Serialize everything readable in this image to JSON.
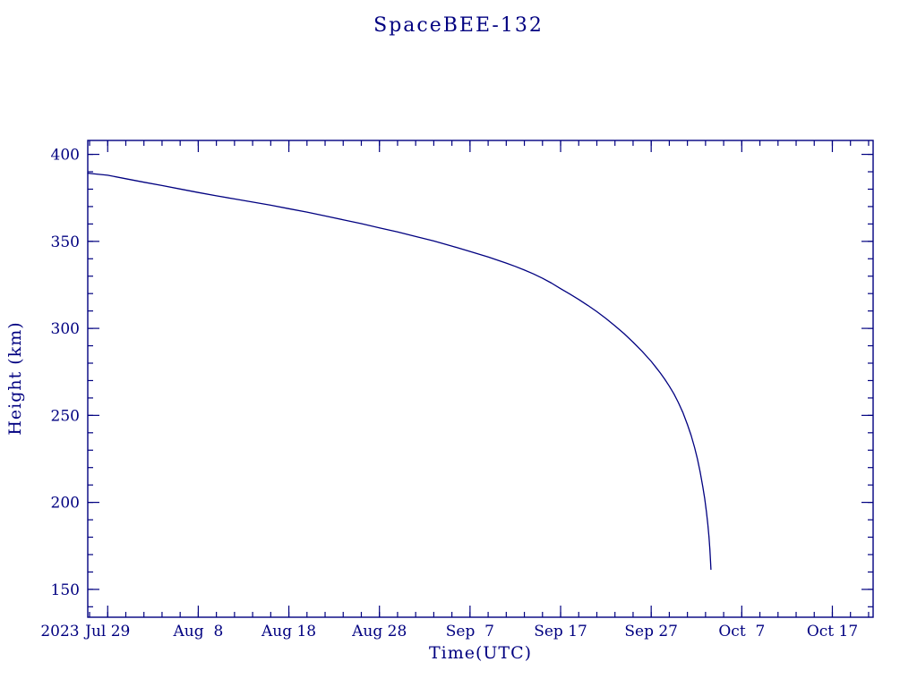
{
  "colors": {
    "axis": "#000080",
    "line": "#000080",
    "text": "#000080",
    "background": "#ffffff"
  },
  "chart_data": {
    "type": "line",
    "title": "SpaceBEE-132",
    "xlabel": "Time(UTC)",
    "ylabel": "Height (km)",
    "year_label": "2023",
    "x_unit": "days since 2023 Jul 29",
    "xlim": [
      -2.2,
      84.5
    ],
    "ylim": [
      134,
      408
    ],
    "grid": false,
    "legend": false,
    "x_major_ticks": [
      {
        "value": 0,
        "label": "Jul 29"
      },
      {
        "value": 10,
        "label": "Aug  8"
      },
      {
        "value": 20,
        "label": "Aug 18"
      },
      {
        "value": 30,
        "label": "Aug 28"
      },
      {
        "value": 40,
        "label": "Sep  7"
      },
      {
        "value": 50,
        "label": "Sep 17"
      },
      {
        "value": 60,
        "label": "Sep 27"
      },
      {
        "value": 70,
        "label": "Oct  7"
      },
      {
        "value": 80,
        "label": "Oct 17"
      }
    ],
    "x_minor_step": 2,
    "y_major_ticks": [
      150,
      200,
      250,
      300,
      350,
      400
    ],
    "y_minor_step": 10,
    "series": [
      {
        "name": "height_km",
        "points": [
          [
            -2.2,
            389.2
          ],
          [
            0,
            388
          ],
          [
            2,
            386
          ],
          [
            4,
            384
          ],
          [
            6,
            382.1
          ],
          [
            8,
            380.1
          ],
          [
            10,
            378.1
          ],
          [
            12,
            376.2
          ],
          [
            14,
            374.4
          ],
          [
            16,
            372.6
          ],
          [
            18,
            370.8
          ],
          [
            20,
            368.8
          ],
          [
            22,
            366.8
          ],
          [
            24,
            364.6
          ],
          [
            26,
            362.4
          ],
          [
            28,
            360.2
          ],
          [
            30,
            357.8
          ],
          [
            32,
            355.4
          ],
          [
            34,
            352.8
          ],
          [
            36,
            350.2
          ],
          [
            38,
            347.3
          ],
          [
            40,
            344.2
          ],
          [
            42,
            341.0
          ],
          [
            44,
            337.5
          ],
          [
            45,
            335.6
          ],
          [
            46,
            333.5
          ],
          [
            47,
            331.3
          ],
          [
            48,
            328.8
          ],
          [
            49,
            326.0
          ],
          [
            50,
            322.8
          ],
          [
            51,
            319.8
          ],
          [
            52,
            316.6
          ],
          [
            53,
            313.2
          ],
          [
            54,
            309.6
          ],
          [
            55,
            305.7
          ],
          [
            56,
            301.5
          ],
          [
            57,
            297.0
          ],
          [
            58,
            292.1
          ],
          [
            59,
            286.8
          ],
          [
            60,
            281.0
          ],
          [
            60.5,
            277.8
          ],
          [
            61,
            274.4
          ],
          [
            61.5,
            270.8
          ],
          [
            62,
            266.8
          ],
          [
            62.5,
            262.4
          ],
          [
            63,
            257.4
          ],
          [
            63.5,
            251.6
          ],
          [
            64,
            244.8
          ],
          [
            64.4,
            238.6
          ],
          [
            64.8,
            231.4
          ],
          [
            65.1,
            225.0
          ],
          [
            65.4,
            217.6
          ],
          [
            65.7,
            209.0
          ],
          [
            65.9,
            202.3
          ],
          [
            66.1,
            194.4
          ],
          [
            66.25,
            187.5
          ],
          [
            66.38,
            180.2
          ],
          [
            66.48,
            173.0
          ],
          [
            66.55,
            166.5
          ],
          [
            66.6,
            161.5
          ]
        ]
      }
    ]
  }
}
